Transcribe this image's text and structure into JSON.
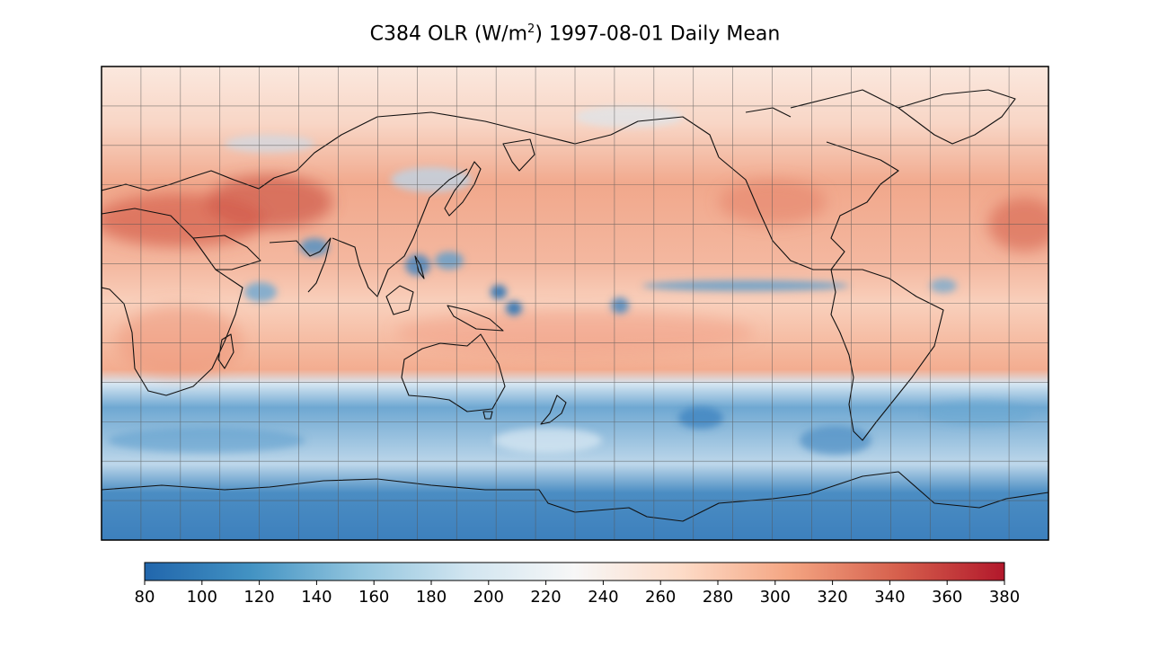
{
  "title": {
    "prefix": "C384 OLR (W/m",
    "superscript": "2",
    "suffix": ") 1997-08-01 Daily Mean"
  },
  "map": {
    "projection": "plate-carree",
    "central_longitude": 180,
    "gridlines": true,
    "coastlines": true,
    "meridian_step_deg": 15,
    "parallel_step_deg": 15
  },
  "colorbar": {
    "orientation": "horizontal",
    "colormap": "RdBu_r",
    "range": [
      80,
      380
    ],
    "ticks": [
      "80",
      "100",
      "120",
      "140",
      "160",
      "180",
      "200",
      "220",
      "240",
      "260",
      "280",
      "300",
      "320",
      "340",
      "360",
      "380"
    ],
    "colors": [
      "#2166ac",
      "#4393c3",
      "#92c5de",
      "#d1e5f0",
      "#f7f7f7",
      "#fddbc7",
      "#f4a582",
      "#d6604d",
      "#b2182b"
    ]
  }
}
